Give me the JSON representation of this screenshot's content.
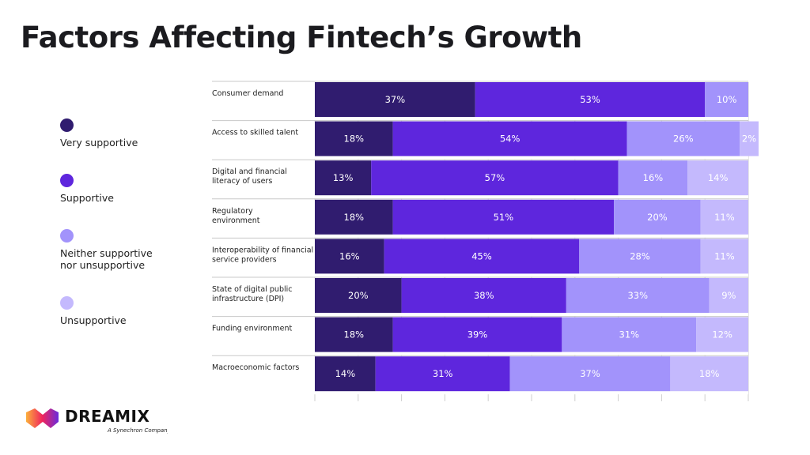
{
  "title": "Factors Affecting Fintech’s Growth",
  "colors": {
    "Very supportive": "#301c6f",
    "Supportive": "#5e26dd",
    "Neither supportive nor unsupportive": "#a293fb",
    "Unsupportive": "#c4b9fd"
  },
  "legend": [
    "Very supportive",
    "Supportive",
    "Neither supportive nor unsupportive",
    "Unsupportive"
  ],
  "legend_lines": [
    [
      "Very supportive"
    ],
    [
      "Supportive"
    ],
    [
      "Neither supportive",
      "nor unsupportive"
    ],
    [
      "Unsupportive"
    ]
  ],
  "logo": {
    "brand": "DREAMIX",
    "tagline": "A Synechron Company"
  },
  "chart_data": {
    "type": "bar",
    "orientation": "horizontal",
    "stacked": true,
    "unit": "%",
    "xlim": [
      0,
      100
    ],
    "grid": false,
    "legend_position": "left",
    "categories": [
      [
        "Consumer demand"
      ],
      [
        "Access to skilled talent"
      ],
      [
        "Digital and financial",
        "literacy of users"
      ],
      [
        "Regulatory",
        "environment"
      ],
      [
        "Interoperability of financial",
        "service providers"
      ],
      [
        "State of digital public",
        "infrastructure (DPI)"
      ],
      [
        "Funding environment"
      ],
      [
        "Macroeconomic factors"
      ]
    ],
    "series": [
      {
        "name": "Very supportive",
        "values": [
          37,
          18,
          13,
          18,
          16,
          20,
          18,
          14
        ]
      },
      {
        "name": "Supportive",
        "values": [
          53,
          54,
          57,
          51,
          45,
          38,
          39,
          31
        ]
      },
      {
        "name": "Neither supportive nor unsupportive",
        "values": [
          10,
          26,
          16,
          20,
          28,
          33,
          31,
          37
        ]
      },
      {
        "name": "Unsupportive",
        "values": [
          0,
          2,
          14,
          11,
          11,
          9,
          12,
          18
        ]
      }
    ]
  }
}
